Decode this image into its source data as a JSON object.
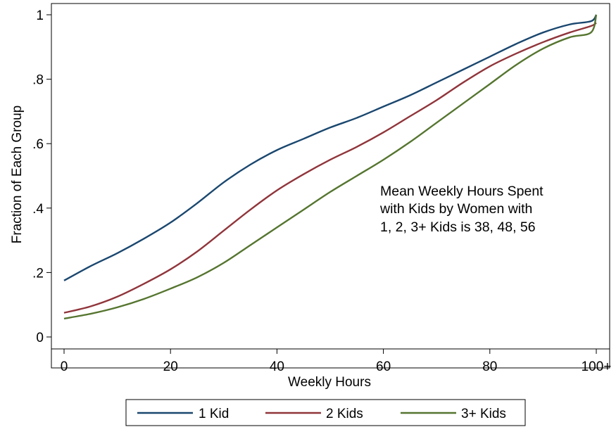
{
  "chart_data": {
    "type": "line",
    "title": "",
    "xlabel": "Weekly Hours",
    "ylabel": "Fraction of Each Group",
    "xlim": [
      0,
      100
    ],
    "ylim": [
      0,
      1
    ],
    "xticks": [
      0,
      20,
      40,
      60,
      80,
      100
    ],
    "xtick_labels": [
      "0",
      "20",
      "40",
      "60",
      "80",
      "100+"
    ],
    "yticks": [
      0,
      0.2,
      0.4,
      0.6,
      0.8,
      1
    ],
    "ytick_labels": [
      "0",
      ".2",
      ".4",
      ".6",
      ".8",
      "1"
    ],
    "grid": false,
    "legend_position": "bottom",
    "annotation": {
      "lines": [
        "Mean Weekly Hours Spent",
        "with Kids by Women with",
        "1, 2, 3+ Kids is 38, 48, 56"
      ]
    },
    "series": [
      {
        "name": "1 Kid",
        "color": "#1a476f",
        "x": [
          0,
          5,
          10,
          15,
          20,
          25,
          30,
          35,
          40,
          45,
          50,
          55,
          60,
          65,
          70,
          75,
          80,
          85,
          90,
          95,
          99,
          100
        ],
        "y": [
          0.175,
          0.22,
          0.26,
          0.305,
          0.355,
          0.415,
          0.48,
          0.535,
          0.58,
          0.615,
          0.65,
          0.68,
          0.715,
          0.75,
          0.79,
          0.83,
          0.87,
          0.91,
          0.945,
          0.97,
          0.98,
          1.0
        ]
      },
      {
        "name": "2 Kids",
        "color": "#90353b",
        "x": [
          0,
          5,
          10,
          15,
          20,
          25,
          30,
          35,
          40,
          45,
          50,
          55,
          60,
          65,
          70,
          75,
          80,
          85,
          90,
          95,
          99,
          100
        ],
        "y": [
          0.075,
          0.095,
          0.125,
          0.165,
          0.21,
          0.265,
          0.33,
          0.395,
          0.455,
          0.505,
          0.55,
          0.59,
          0.635,
          0.685,
          0.735,
          0.79,
          0.84,
          0.88,
          0.915,
          0.945,
          0.965,
          0.975
        ]
      },
      {
        "name": "3+ Kids",
        "color": "#55752f",
        "x": [
          0,
          5,
          10,
          15,
          20,
          25,
          30,
          35,
          40,
          45,
          50,
          55,
          60,
          65,
          70,
          75,
          80,
          85,
          90,
          95,
          99,
          100
        ],
        "y": [
          0.057,
          0.072,
          0.092,
          0.118,
          0.15,
          0.185,
          0.23,
          0.285,
          0.34,
          0.395,
          0.45,
          0.5,
          0.55,
          0.605,
          0.665,
          0.725,
          0.785,
          0.845,
          0.895,
          0.93,
          0.945,
          1.0
        ]
      }
    ]
  }
}
